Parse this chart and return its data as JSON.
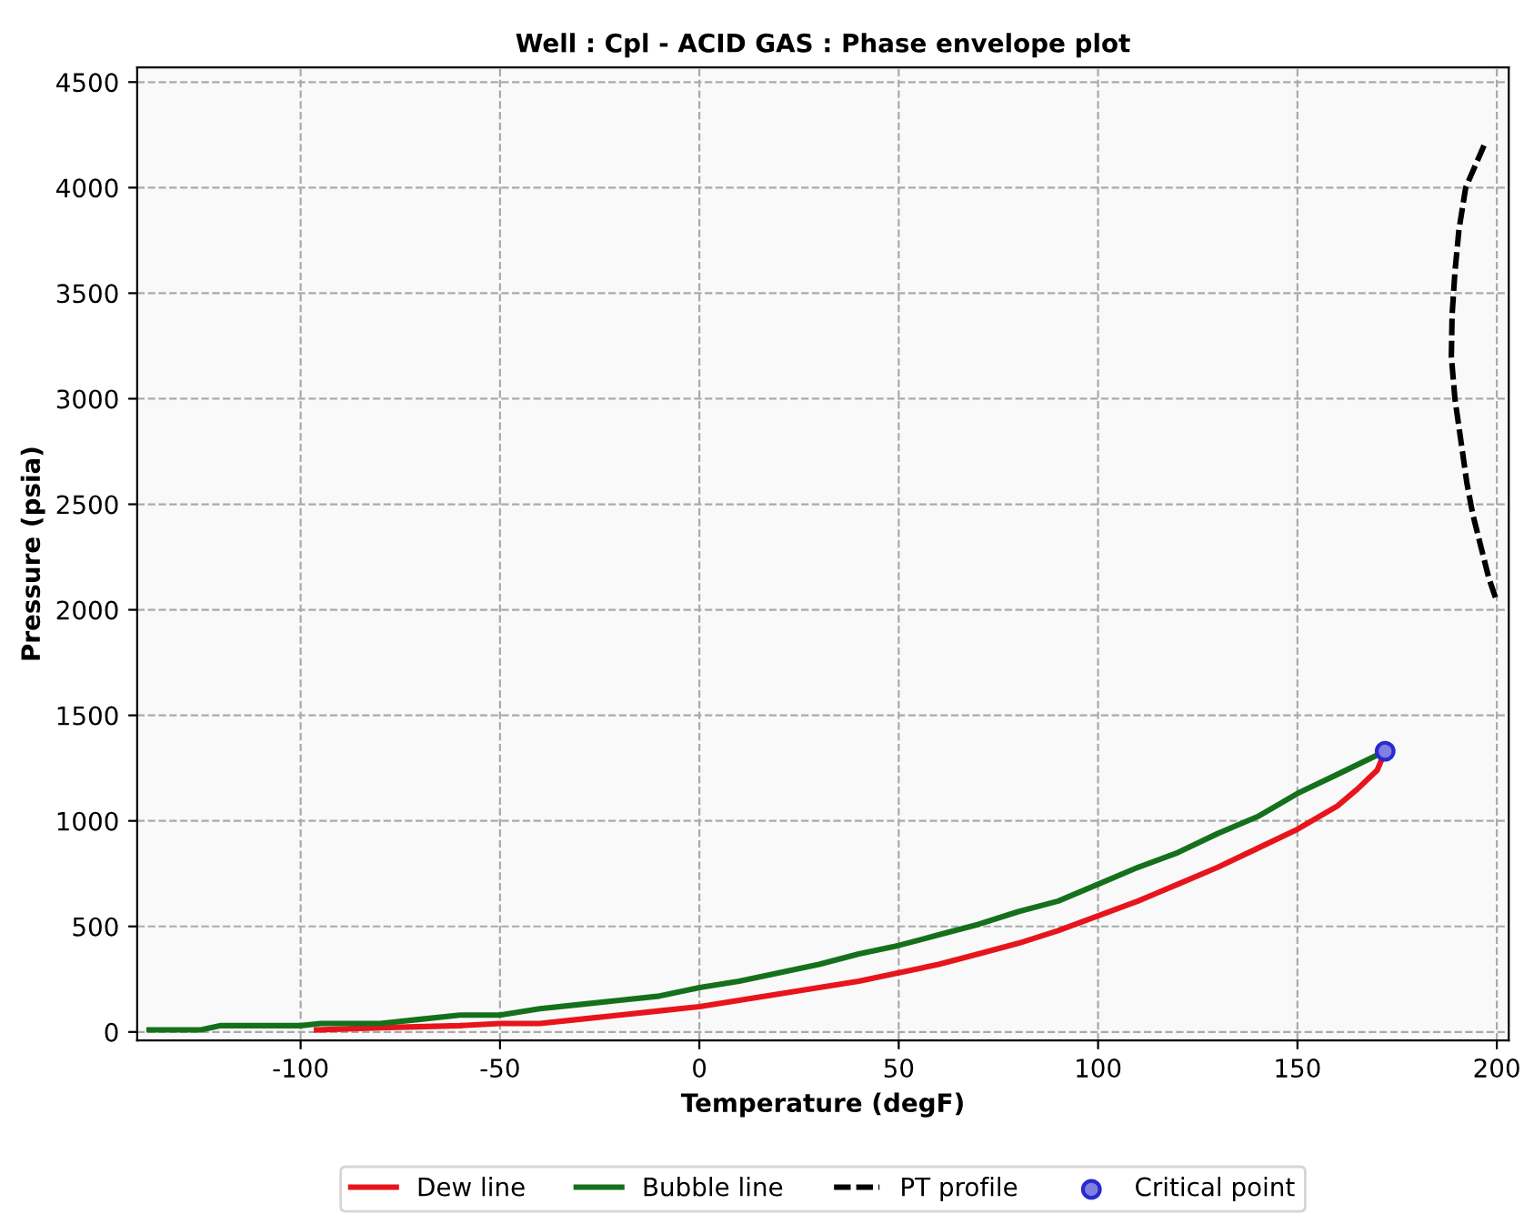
{
  "chart_data": {
    "type": "line",
    "title": "Well : Cpl - ACID GAS : Phase envelope plot",
    "xlabel": "Temperature (degF)",
    "ylabel": "Pressure (psia)",
    "xlim": [
      -141,
      203
    ],
    "xticks": [
      -100,
      -50,
      0,
      50,
      100,
      150,
      200
    ],
    "ylim": [
      -40,
      4570
    ],
    "yticks": [
      0,
      500,
      1000,
      1500,
      2000,
      2500,
      3000,
      3500,
      4000,
      4500
    ],
    "grid": true,
    "legend": "bottom",
    "series": [
      {
        "name": "Dew line",
        "color": "#e8141c",
        "line_style": "solid",
        "x": [
          -96,
          -80,
          -60,
          -50,
          -40,
          -30,
          -20,
          -10,
          0,
          10,
          20,
          30,
          40,
          50,
          60,
          70,
          80,
          90,
          100,
          110,
          120,
          130,
          140,
          150,
          160,
          165,
          170,
          172
        ],
        "values": [
          10,
          20,
          30,
          40,
          40,
          60,
          80,
          100,
          120,
          150,
          180,
          210,
          240,
          280,
          320,
          370,
          420,
          480,
          550,
          620,
          700,
          780,
          870,
          960,
          1070,
          1150,
          1240,
          1330
        ]
      },
      {
        "name": "Bubble line",
        "color": "#15701c",
        "line_style": "solid",
        "x": [
          -138,
          -125,
          -120,
          -100,
          -95,
          -80,
          -70,
          -60,
          -50,
          -40,
          -30,
          -20,
          -10,
          0,
          10,
          20,
          30,
          40,
          50,
          60,
          70,
          80,
          90,
          100,
          110,
          120,
          130,
          140,
          150,
          160,
          172
        ],
        "values": [
          10,
          10,
          30,
          30,
          40,
          40,
          60,
          80,
          80,
          110,
          130,
          150,
          170,
          210,
          240,
          280,
          320,
          370,
          410,
          460,
          510,
          570,
          620,
          700,
          780,
          850,
          940,
          1020,
          1130,
          1220,
          1330
        ]
      },
      {
        "name": "PT profile",
        "color": "#000000",
        "line_style": "dashed",
        "x": [
          196.8,
          192.2,
          190.5,
          189.5,
          188.8,
          188.6,
          189.5,
          191,
          192.5,
          194,
          196,
          198,
          200
        ],
        "values": [
          4200,
          4000,
          3800,
          3600,
          3400,
          3200,
          3000,
          2800,
          2600,
          2450,
          2300,
          2150,
          2040
        ]
      },
      {
        "name": "Critical point",
        "color": "#2a2ad0",
        "type": "scatter",
        "marker": "circle",
        "x": [
          172
        ],
        "values": [
          1330
        ]
      }
    ]
  }
}
